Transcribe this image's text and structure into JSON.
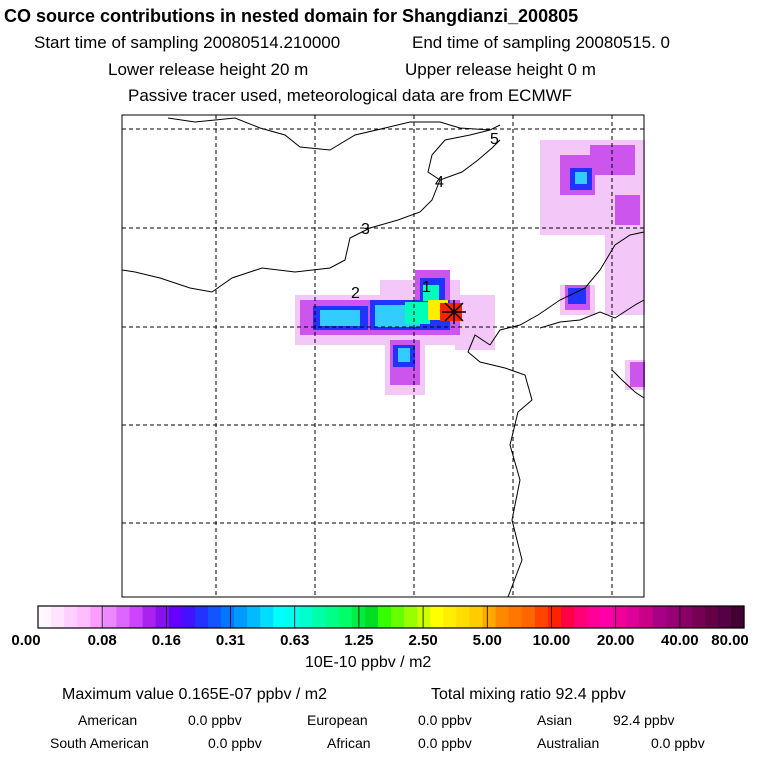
{
  "header": {
    "title": "CO  source contributions in nested domain for Shangdianzi_200805",
    "start_sampling": "Start time of sampling 20080514.210000",
    "end_sampling": "End time of sampling 20080515.     0",
    "lower_release": "Lower release height   20 m",
    "upper_release": "Upper release height    0 m",
    "tracer_note": "Passive tracer used, meteorological data are from ECMWF"
  },
  "map": {
    "region_labels": [
      "1",
      "2",
      "3",
      "4",
      "5"
    ],
    "receptor_symbol": "receptor-star"
  },
  "colorbar": {
    "tick_labels": [
      "0.00",
      "0.08",
      "0.16",
      "0.31",
      "0.63",
      "1.25",
      "2.50",
      "5.00",
      "10.00",
      "20.00",
      "40.00",
      "80.00"
    ],
    "units": "10E-10 ppbv / m2",
    "colors": [
      "#fff6ff",
      "#ffe3ff",
      "#ffd0ff",
      "#ffbdff",
      "#ff9cff",
      "#ee88ff",
      "#dd66ff",
      "#cc44ff",
      "#aa22ee",
      "#8811ee",
      "#6600ff",
      "#4411ff",
      "#2233ff",
      "#1155ff",
      "#0077ff",
      "#0099ff",
      "#00bbff",
      "#00ddff",
      "#00ffff",
      "#00ffee",
      "#00ffcc",
      "#00ffaa",
      "#00ff88",
      "#00ff66",
      "#00ee44",
      "#00dd22",
      "#33ff00",
      "#66ff00",
      "#99ff00",
      "#ccff00",
      "#ffff00",
      "#ffee00",
      "#ffdd00",
      "#ffcc00",
      "#ffaa00",
      "#ff8800",
      "#ff7700",
      "#ff6600",
      "#ff4400",
      "#ff2200",
      "#ff0044",
      "#ff0077",
      "#ff0099",
      "#ff00aa",
      "#ee0099",
      "#dd0099",
      "#cc0088",
      "#aa0088",
      "#990077",
      "#880066",
      "#770055",
      "#660044",
      "#550044",
      "#440033"
    ]
  },
  "summary": {
    "max_value": "Maximum value  0.165E-07 ppbv / m2",
    "total_mixing": "Total mixing ratio       92.4 ppbv",
    "sources": [
      {
        "name": "American",
        "value": "0.0 ppbv"
      },
      {
        "name": "European",
        "value": "0.0 ppbv"
      },
      {
        "name": "Asian",
        "value": "92.4 ppbv"
      },
      {
        "name": "South American",
        "value": "0.0 ppbv"
      },
      {
        "name": "African",
        "value": "0.0 ppbv"
      },
      {
        "name": "Australian",
        "value": "0.0 ppbv"
      }
    ]
  }
}
